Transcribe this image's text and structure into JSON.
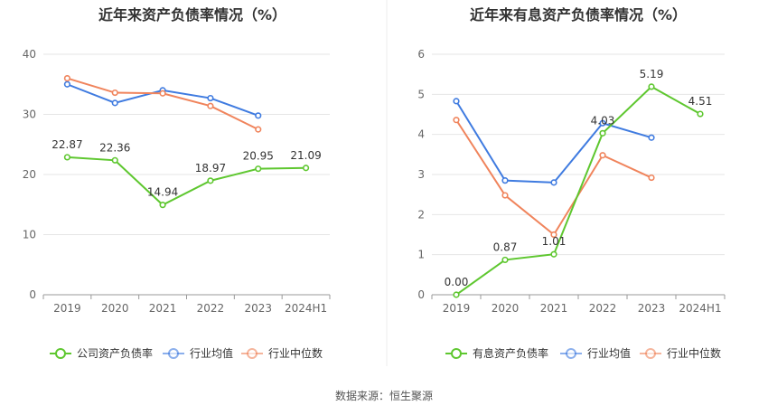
{
  "source": "数据来源：恒生聚源",
  "chart_data": [
    {
      "type": "line",
      "title": "近年来资产负债率情况（%）",
      "categories": [
        "2019",
        "2020",
        "2021",
        "2022",
        "2023",
        "2024H1"
      ],
      "ylim": [
        0,
        40
      ],
      "yticks": [
        0,
        10,
        20,
        30,
        40
      ],
      "grid": true,
      "legend_position": "bottom",
      "series": [
        {
          "name": "公司资产负债率",
          "color": "#5ec72f",
          "values": [
            22.87,
            22.36,
            14.94,
            18.97,
            20.95,
            21.09
          ],
          "labels": [
            "22.87",
            "22.36",
            "14.94",
            "18.97",
            "20.95",
            "21.09"
          ]
        },
        {
          "name": "行业均值",
          "color": "#3f7be0",
          "values": [
            35.0,
            31.9,
            34.0,
            32.7,
            29.8,
            null
          ]
        },
        {
          "name": "行业中位数",
          "color": "#f0845c",
          "values": [
            36.0,
            33.6,
            33.5,
            31.4,
            27.5,
            null
          ]
        }
      ]
    },
    {
      "type": "line",
      "title": "近年来有息资产负债率情况（%）",
      "categories": [
        "2019",
        "2020",
        "2021",
        "2022",
        "2023",
        "2024H1"
      ],
      "ylim": [
        0,
        6
      ],
      "yticks": [
        0,
        1,
        2,
        3,
        4,
        5,
        6
      ],
      "grid": true,
      "legend_position": "bottom",
      "series": [
        {
          "name": "有息资产负债率",
          "color": "#5ec72f",
          "values": [
            0.0,
            0.87,
            1.01,
            4.03,
            5.19,
            4.51
          ],
          "labels": [
            "0.00",
            "0.87",
            "1.01",
            "4.03",
            "5.19",
            "4.51"
          ]
        },
        {
          "name": "行业均值",
          "color": "#3f7be0",
          "values": [
            4.83,
            2.85,
            2.8,
            4.28,
            3.92,
            null
          ]
        },
        {
          "name": "行业中位数",
          "color": "#f0845c",
          "values": [
            4.36,
            2.48,
            1.5,
            3.48,
            2.92,
            null
          ]
        }
      ]
    }
  ]
}
